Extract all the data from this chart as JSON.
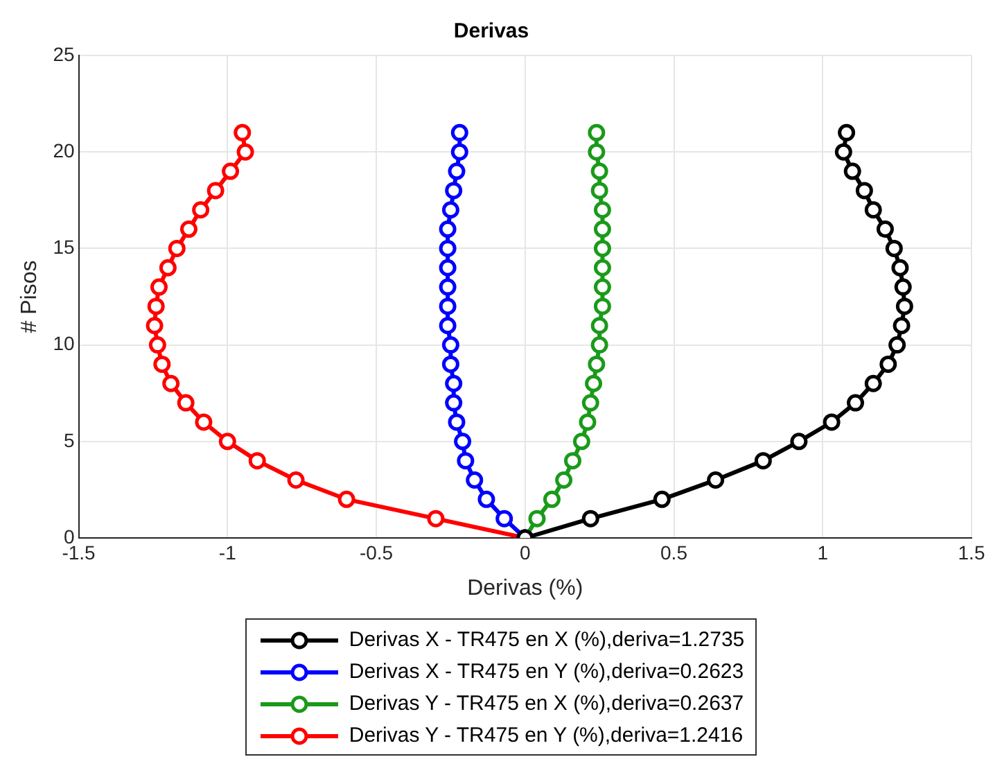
{
  "chart_data": {
    "type": "line",
    "title": "Derivas",
    "xlabel": "Derivas (%)",
    "ylabel": "# Pisos",
    "xlim": [
      -1.5,
      1.5
    ],
    "xticks": [
      -1.5,
      -1,
      -0.5,
      0,
      0.5,
      1,
      1.5
    ],
    "ylim": [
      0,
      25
    ],
    "yticks": [
      0,
      5,
      10,
      15,
      20,
      25
    ],
    "grid": true,
    "legend": "bottom",
    "marker": "circle",
    "line_style": "solid",
    "series": [
      {
        "name": "Derivas X - TR475 en X (%),deriva=1.2735",
        "color": "#000000",
        "x": [
          0,
          0.22,
          0.46,
          0.64,
          0.8,
          0.92,
          1.03,
          1.11,
          1.17,
          1.22,
          1.25,
          1.265,
          1.275,
          1.27,
          1.26,
          1.24,
          1.21,
          1.17,
          1.14,
          1.1,
          1.07,
          1.08
        ],
        "values": [
          0,
          1,
          2,
          3,
          4,
          5,
          6,
          7,
          8,
          9,
          10,
          11,
          12,
          13,
          14,
          15,
          16,
          17,
          18,
          19,
          20,
          21
        ]
      },
      {
        "name": "Derivas X - TR475 en Y (%),deriva=0.2623",
        "color": "#0000ff",
        "x": [
          0,
          -0.07,
          -0.13,
          -0.17,
          -0.2,
          -0.21,
          -0.23,
          -0.24,
          -0.24,
          -0.25,
          -0.25,
          -0.26,
          -0.26,
          -0.26,
          -0.26,
          -0.26,
          -0.26,
          -0.25,
          -0.24,
          -0.23,
          -0.22,
          -0.22
        ],
        "values": [
          0,
          1,
          2,
          3,
          4,
          5,
          6,
          7,
          8,
          9,
          10,
          11,
          12,
          13,
          14,
          15,
          16,
          17,
          18,
          19,
          20,
          21
        ]
      },
      {
        "name": "Derivas Y - TR475 en X (%),deriva=0.2637",
        "color": "#1a9a1a",
        "x": [
          0,
          0.04,
          0.09,
          0.13,
          0.16,
          0.19,
          0.21,
          0.22,
          0.23,
          0.24,
          0.25,
          0.25,
          0.26,
          0.26,
          0.26,
          0.26,
          0.26,
          0.26,
          0.25,
          0.25,
          0.24,
          0.24
        ],
        "values": [
          0,
          1,
          2,
          3,
          4,
          5,
          6,
          7,
          8,
          9,
          10,
          11,
          12,
          13,
          14,
          15,
          16,
          17,
          18,
          19,
          20,
          21
        ]
      },
      {
        "name": "Derivas Y - TR475 en Y (%),deriva=1.2416",
        "color": "#ff0000",
        "x": [
          0,
          -0.3,
          -0.6,
          -0.77,
          -0.9,
          -1,
          -1.08,
          -1.14,
          -1.19,
          -1.22,
          -1.235,
          -1.245,
          -1.24,
          -1.23,
          -1.2,
          -1.17,
          -1.13,
          -1.09,
          -1.04,
          -0.99,
          -0.94,
          -0.95
        ],
        "values": [
          0,
          1,
          2,
          3,
          4,
          5,
          6,
          7,
          8,
          9,
          10,
          11,
          12,
          13,
          14,
          15,
          16,
          17,
          18,
          19,
          20,
          21
        ]
      }
    ]
  }
}
